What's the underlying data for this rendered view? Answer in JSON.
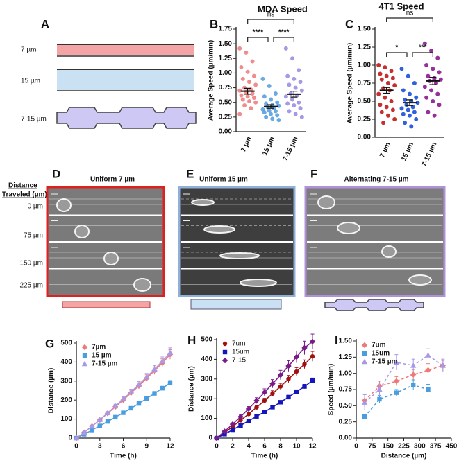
{
  "schematic": {
    "panel": "A",
    "labels": [
      "7 µm",
      "15 µm",
      "7-15 µm"
    ]
  },
  "micrographs": {
    "distance_header": [
      "Distance",
      "Traveled (µm)"
    ],
    "distances": [
      "0 µm",
      "75 µm",
      "150 µm",
      "225 µm"
    ],
    "panels": [
      {
        "panel": "D",
        "title": "Uniform 7 µm"
      },
      {
        "panel": "E",
        "title": "Uniform 15 µm"
      },
      {
        "panel": "F",
        "title": "Alternating 7-15 µm"
      }
    ]
  },
  "chart_data": [
    {
      "type": "dot",
      "panel": "B",
      "title": "MDA Speed",
      "ylabel": "Average Speed (µm/min)",
      "categories": [
        "7 µm",
        "15 µm",
        "7-15 µm"
      ],
      "colors": [
        "#f08080",
        "#5aa0e0",
        "#9b8fe0"
      ],
      "values": [
        [
          1.42,
          1.35,
          1.2,
          1.1,
          1.02,
          0.95,
          0.9,
          0.85,
          0.8,
          0.75,
          0.72,
          0.7,
          0.68,
          0.65,
          0.62,
          0.6,
          0.58,
          0.55,
          0.52,
          0.5,
          0.45,
          0.4,
          0.3
        ],
        [
          0.9,
          0.78,
          0.65,
          0.6,
          0.55,
          0.5,
          0.48,
          0.46,
          0.44,
          0.42,
          0.4,
          0.38,
          0.36,
          0.35,
          0.33,
          0.3,
          0.28,
          0.25,
          0.22,
          0.2
        ],
        [
          1.42,
          1.25,
          1.05,
          0.95,
          0.9,
          0.85,
          0.8,
          0.75,
          0.7,
          0.65,
          0.62,
          0.6,
          0.55,
          0.5,
          0.48,
          0.45,
          0.4,
          0.35,
          0.3,
          0.25
        ]
      ],
      "means": [
        0.69,
        0.43,
        0.64
      ],
      "sems": [
        0.05,
        0.03,
        0.05
      ],
      "annotations": [
        "ns",
        "****",
        "****"
      ],
      "ylim": [
        0,
        1.75
      ],
      "yticks": [
        {
          "value": 0,
          "label": "0.00"
        },
        {
          "value": 0.25,
          "label": "0.25"
        },
        {
          "value": 0.5,
          "label": "0.50"
        },
        {
          "value": 0.75,
          "label": "0.75"
        },
        {
          "value": 1,
          "label": "1.00"
        },
        {
          "value": 1.25,
          "label": "1.25"
        },
        {
          "value": 1.5,
          "label": "1.50"
        },
        {
          "value": 1.75,
          "label": "1.75"
        }
      ]
    },
    {
      "type": "dot",
      "panel": "C",
      "title": "4T1 Speed",
      "ylabel": "Average Speed (µm/min)",
      "categories": [
        "7 µm",
        "15 µm",
        "7-15 µm"
      ],
      "colors": [
        "#c01818",
        "#1a4fd8",
        "#8a1a90"
      ],
      "values": [
        [
          1.0,
          0.97,
          0.92,
          0.88,
          0.85,
          0.82,
          0.8,
          0.75,
          0.72,
          0.68,
          0.65,
          0.6,
          0.55,
          0.5,
          0.45,
          0.42,
          0.38,
          0.35,
          0.3,
          0.25,
          0.2
        ],
        [
          0.95,
          0.85,
          0.75,
          0.65,
          0.6,
          0.55,
          0.52,
          0.5,
          0.48,
          0.45,
          0.42,
          0.4,
          0.38,
          0.35,
          0.32,
          0.3,
          0.25,
          0.2,
          0.15
        ],
        [
          1.3,
          1.2,
          1.1,
          1.0,
          0.95,
          0.9,
          0.85,
          0.82,
          0.8,
          0.78,
          0.75,
          0.7,
          0.65,
          0.6,
          0.55,
          0.5,
          0.45,
          0.35,
          0.3
        ]
      ],
      "means": [
        0.65,
        0.48,
        0.78
      ],
      "sems": [
        0.04,
        0.04,
        0.05
      ],
      "annotations": [
        "ns",
        "*",
        "***"
      ],
      "ylim": [
        0,
        1.5
      ],
      "yticks": [
        {
          "value": 0,
          "label": "0.00"
        },
        {
          "value": 0.25,
          "label": "0.25"
        },
        {
          "value": 0.5,
          "label": "0.50"
        },
        {
          "value": 0.75,
          "label": "0.75"
        },
        {
          "value": 1,
          "label": "1.00"
        },
        {
          "value": 1.25,
          "label": "1.25"
        },
        {
          "value": 1.5,
          "label": "1.50"
        }
      ]
    },
    {
      "type": "line",
      "panel": "G",
      "xlabel": "Time (h)",
      "ylabel": "Distance (µm)",
      "legend": "top-left",
      "x": [
        0,
        1,
        2,
        3,
        4,
        5,
        6,
        7,
        8,
        9,
        10,
        11,
        12
      ],
      "series": [
        {
          "name": "7µm",
          "color": "#f07878",
          "marker": "diamond",
          "values": [
            0,
            30,
            62,
            95,
            130,
            165,
            200,
            238,
            275,
            315,
            355,
            395,
            440
          ],
          "errors": [
            0,
            2,
            4,
            6,
            8,
            10,
            12,
            14,
            16,
            18,
            20,
            22,
            25
          ]
        },
        {
          "name": "15 µm",
          "color": "#4a9ee0",
          "marker": "square",
          "values": [
            0,
            20,
            42,
            64,
            87,
            110,
            133,
            157,
            182,
            208,
            235,
            262,
            290
          ],
          "errors": [
            0,
            1,
            2,
            3,
            4,
            5,
            6,
            7,
            8,
            9,
            10,
            11,
            13
          ]
        },
        {
          "name": "7-15 µm",
          "color": "#a898e8",
          "marker": "triangle",
          "values": [
            0,
            30,
            62,
            96,
            132,
            168,
            205,
            243,
            282,
            322,
            362,
            405,
            450
          ],
          "errors": [
            0,
            2,
            4,
            6,
            8,
            10,
            12,
            14,
            16,
            18,
            20,
            22,
            25
          ]
        }
      ],
      "xlim": [
        0,
        12
      ],
      "xticks": [
        0,
        3,
        6,
        9,
        12
      ],
      "ylim": [
        0,
        500
      ],
      "yticks": [
        0,
        100,
        200,
        300,
        400,
        500
      ]
    },
    {
      "type": "line",
      "panel": "H",
      "xlabel": "Time (h)",
      "ylabel": "Distance (µm)",
      "legend": "top-left",
      "x": [
        0,
        1,
        2,
        3,
        4,
        5,
        6,
        7,
        8,
        9,
        10,
        11,
        12
      ],
      "series": [
        {
          "name": "7um",
          "color": "#a01010",
          "marker": "circle",
          "values": [
            0,
            28,
            58,
            90,
            122,
            156,
            190,
            226,
            262,
            300,
            338,
            375,
            415
          ],
          "errors": [
            0,
            2,
            4,
            6,
            8,
            10,
            12,
            14,
            16,
            18,
            20,
            22,
            25
          ]
        },
        {
          "name": "15um",
          "color": "#1515c0",
          "marker": "square",
          "values": [
            0,
            20,
            42,
            64,
            87,
            110,
            133,
            157,
            182,
            208,
            235,
            262,
            292
          ],
          "errors": [
            0,
            1,
            2,
            3,
            4,
            5,
            6,
            7,
            8,
            9,
            10,
            11,
            13
          ]
        },
        {
          "name": "7-15",
          "color": "#7a1a8a",
          "marker": "diamond",
          "values": [
            0,
            34,
            70,
            108,
            148,
            190,
            232,
            276,
            320,
            366,
            412,
            458,
            490
          ],
          "errors": [
            0,
            3,
            6,
            9,
            12,
            15,
            18,
            21,
            24,
            27,
            30,
            34,
            38
          ]
        }
      ],
      "xlim": [
        0,
        12
      ],
      "xticks": [
        0,
        2,
        4,
        6,
        8,
        10,
        12
      ],
      "ylim": [
        0,
        500
      ],
      "yticks": [
        0,
        100,
        200,
        300,
        400,
        500
      ]
    },
    {
      "type": "line",
      "panel": "I",
      "xlabel": "Distance (µm)",
      "ylabel": "Speed (µm/min)",
      "legend": "top-left",
      "dashed": true,
      "series": [
        {
          "name": "7um",
          "color": "#f07878",
          "marker": "diamond",
          "x": [
            40,
            110,
            190,
            270,
            340,
            410
          ],
          "values": [
            0.58,
            0.8,
            0.88,
            0.98,
            1.05,
            1.12
          ],
          "errors": [
            0.1,
            0.08,
            0.07,
            0.08,
            0.1,
            0.08
          ]
        },
        {
          "name": "15um",
          "color": "#4a9ee0",
          "marker": "square",
          "x": [
            40,
            110,
            190,
            270,
            340
          ],
          "values": [
            0.33,
            0.6,
            0.7,
            0.82,
            0.75
          ],
          "errors": [
            0.03,
            0.06,
            0.05,
            0.08,
            0.08
          ]
        },
        {
          "name": "7-15 µm",
          "color": "#a898e8",
          "marker": "triangle",
          "x": [
            40,
            110,
            190,
            270,
            340,
            410
          ],
          "values": [
            0.55,
            0.75,
            1.17,
            1.12,
            1.28,
            1.12
          ],
          "errors": [
            0.12,
            0.1,
            0.12,
            0.1,
            0.1,
            0.1
          ]
        }
      ],
      "xlim": [
        0,
        450
      ],
      "xticks": [
        0,
        75,
        150,
        225,
        300,
        375,
        450
      ],
      "ylim": [
        0,
        1.5
      ],
      "yticks": [
        {
          "value": 0,
          "label": "0.00"
        },
        {
          "value": 0.25,
          "label": "0.25"
        },
        {
          "value": 0.5,
          "label": "0.50"
        },
        {
          "value": 0.75,
          "label": "0.75"
        },
        {
          "value": 1,
          "label": "1.00"
        },
        {
          "value": 1.25,
          "label": "1.25"
        },
        {
          "value": 1.5,
          "label": "1.50"
        }
      ]
    }
  ]
}
